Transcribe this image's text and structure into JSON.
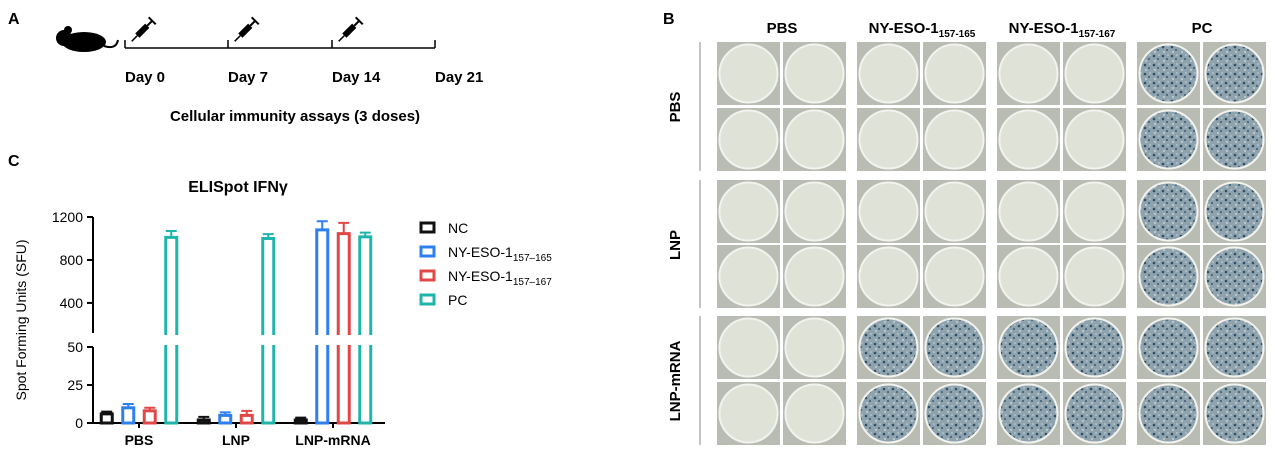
{
  "panel_a": {
    "label": "A",
    "days": [
      "Day 0",
      "Day 7",
      "Day 14",
      "Day 21"
    ],
    "caption": "Cellular immunity assays (3 doses)"
  },
  "panel_b": {
    "label": "B",
    "columns": [
      {
        "text": "PBS"
      },
      {
        "text": "NY-ESO-1",
        "sub": "157-165"
      },
      {
        "text": "NY-ESO-1",
        "sub": "157-167"
      },
      {
        "text": "PC"
      }
    ],
    "rows": [
      "PBS",
      "LNP",
      "LNP-mRNA"
    ],
    "spotted": [
      [
        false,
        false,
        false,
        true
      ],
      [
        false,
        false,
        false,
        true
      ],
      [
        false,
        true,
        true,
        true
      ]
    ]
  },
  "chart_data": {
    "type": "bar",
    "panel_label": "C",
    "title": "ELISpot IFNγ",
    "y_label": "Spot Forming Units (SFU)",
    "categories": [
      "PBS",
      "LNP",
      "LNP-mRNA"
    ],
    "ylim_segments": [
      [
        0,
        50
      ],
      [
        120,
        1200
      ]
    ],
    "yticks_segments": [
      [
        0,
        25,
        50
      ],
      [
        400,
        800,
        1200
      ]
    ],
    "series": [
      {
        "name": "NC",
        "color": "#111111",
        "values": [
          6,
          2,
          2
        ],
        "errors": [
          1.5,
          2,
          1.5
        ]
      },
      {
        "name": "NY-ESO-1",
        "name_sub": "157–165",
        "color": "#2f7fef",
        "values": [
          10,
          5,
          1080
        ],
        "errors": [
          2.5,
          2,
          80
        ]
      },
      {
        "name": "NY-ESO-1",
        "name_sub": "157–167",
        "color": "#e04848",
        "values": [
          8,
          5,
          1045
        ],
        "errors": [
          2,
          3,
          100
        ]
      },
      {
        "name": "PC",
        "color": "#1fb5aa",
        "values": [
          1010,
          1000,
          1015
        ],
        "errors": [
          60,
          40,
          40
        ]
      }
    ]
  }
}
